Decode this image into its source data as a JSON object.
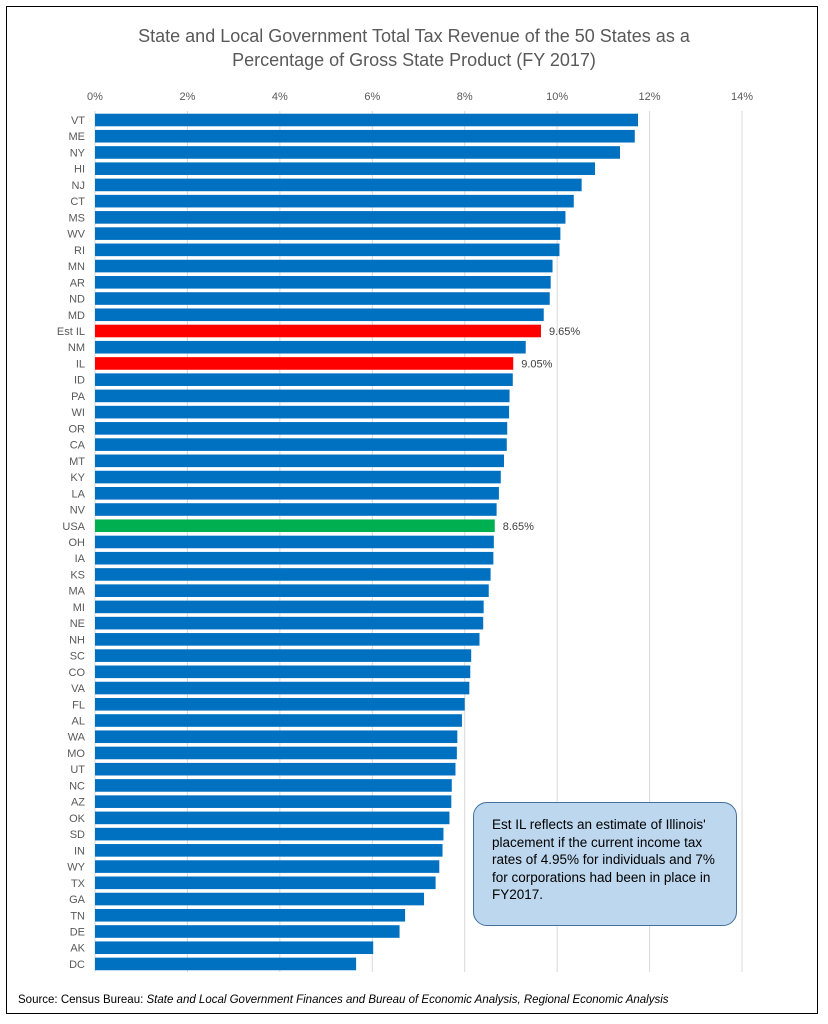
{
  "chart_data": {
    "type": "bar",
    "orientation": "horizontal",
    "title": [
      "State and Local Government Total Tax Revenue of the 50 States as a",
      "Percentage of Gross State Product (FY 2017)"
    ],
    "xlim": [
      0,
      14
    ],
    "x_ticks": [
      "0%",
      "2%",
      "4%",
      "6%",
      "8%",
      "10%",
      "12%",
      "14%"
    ],
    "grid": "vertical",
    "categories": [
      "VT",
      "ME",
      "NY",
      "HI",
      "NJ",
      "CT",
      "MS",
      "WV",
      "RI",
      "MN",
      "AR",
      "ND",
      "MD",
      "Est IL",
      "NM",
      "IL",
      "ID",
      "PA",
      "WI",
      "OR",
      "CA",
      "MT",
      "KY",
      "LA",
      "NV",
      "USA",
      "OH",
      "IA",
      "KS",
      "MA",
      "MI",
      "NE",
      "NH",
      "SC",
      "CO",
      "VA",
      "FL",
      "AL",
      "WA",
      "MO",
      "UT",
      "NC",
      "AZ",
      "OK",
      "SD",
      "IN",
      "WY",
      "TX",
      "GA",
      "TN",
      "DE",
      "AK",
      "DC"
    ],
    "values": [
      11.75,
      11.68,
      11.36,
      10.82,
      10.53,
      10.36,
      10.18,
      10.07,
      10.05,
      9.9,
      9.86,
      9.84,
      9.71,
      9.65,
      9.32,
      9.05,
      9.04,
      8.97,
      8.96,
      8.92,
      8.91,
      8.85,
      8.78,
      8.74,
      8.69,
      8.65,
      8.63,
      8.62,
      8.56,
      8.52,
      8.41,
      8.4,
      8.32,
      8.14,
      8.12,
      8.1,
      8.0,
      7.94,
      7.84,
      7.83,
      7.8,
      7.72,
      7.71,
      7.67,
      7.54,
      7.52,
      7.45,
      7.37,
      7.12,
      6.71,
      6.59,
      6.02,
      5.65
    ],
    "bar_colors": {
      "default": "#0070C0",
      "Est IL": "#FF0000",
      "IL": "#FF0000",
      "USA": "#00B050"
    },
    "data_labels": {
      "Est IL": "9.65%",
      "IL": "9.05%",
      "USA": "8.65%"
    }
  },
  "annotation": "Est IL reflects an estimate of Illinois' placement if the current income tax rates of 4.95% for individuals and 7% for corporations had been in place in FY2017.",
  "source": {
    "prefix": "Source: Census Bureau: ",
    "italic": "State and Local Government Finances and Bureau of Economic Analysis, Regional Economic Analysis"
  },
  "colors": {
    "gridline": "#D9D9D9",
    "axis_text": "#595959"
  }
}
